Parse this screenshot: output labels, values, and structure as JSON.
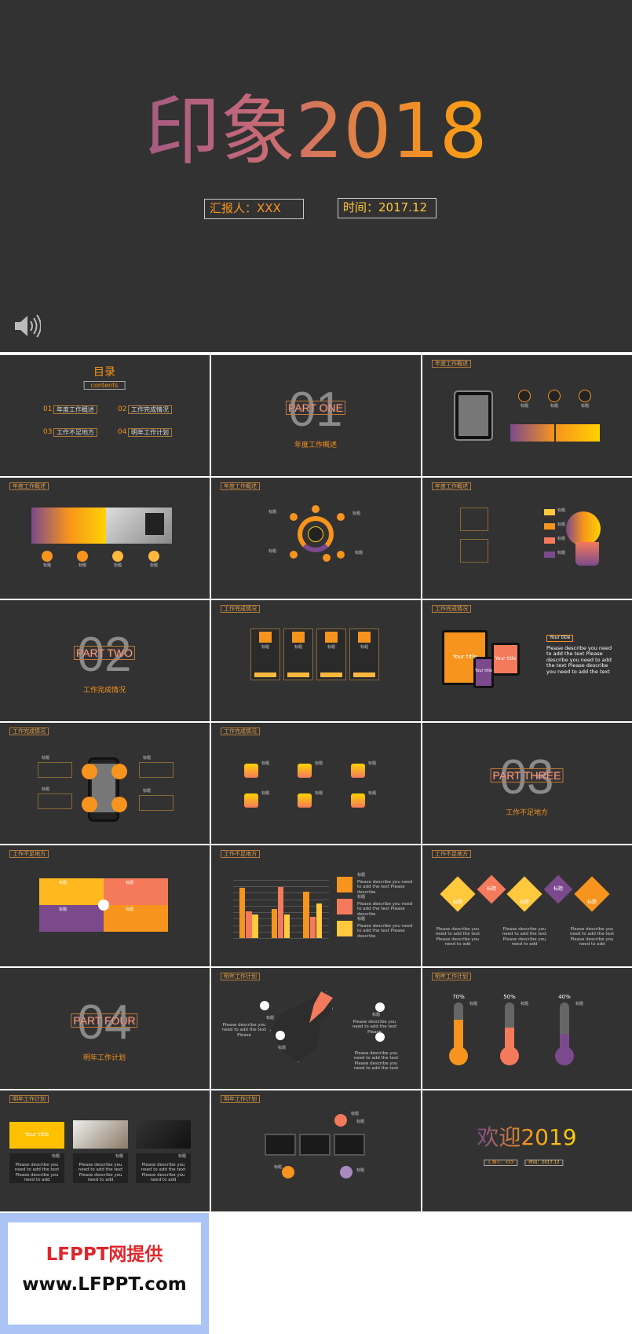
{
  "cover": {
    "title": "印象2018",
    "reporter": "汇报人：XXX",
    "time": "时间：2017.12"
  },
  "slides": [
    {
      "title": "目录",
      "subtitle": "contents",
      "items": [
        "01",
        "年度工作概述",
        "02",
        "工作完成情况",
        "03",
        "工作不足地方",
        "04",
        "明年工作计划"
      ]
    },
    {
      "number": "01",
      "part": "PART ONE",
      "caption": "年度工作概述"
    },
    {
      "header": "年度工作概述",
      "texts": [
        "标题",
        "标题",
        "标题"
      ]
    },
    {
      "header": "年度工作概述",
      "texts": [
        "标题",
        "标题",
        "标题",
        "标题"
      ]
    },
    {
      "header": "年度工作概述",
      "texts": [
        "标题",
        "标题",
        "标题",
        "标题"
      ]
    },
    {
      "header": "年度工作概述",
      "texts": [
        "标题",
        "标题",
        "标题",
        "标题"
      ]
    },
    {
      "number": "02",
      "part": "PART TWO",
      "caption": "工作完成情况"
    },
    {
      "header": "工作完成情况",
      "texts": [
        "标题",
        "标题",
        "标题",
        "标题"
      ]
    },
    {
      "header": "工作完成情况",
      "texts": [
        "Your title",
        "Your title",
        "Your title",
        "Your title",
        "Please describe you need to add the text Please describe you need to add the text Please describe you need to add the text"
      ]
    },
    {
      "header": "工作完成情况",
      "texts": [
        "标题",
        "标题",
        "标题",
        "标题"
      ]
    },
    {
      "header": "工作完成情况",
      "texts": [
        "标题",
        "标题",
        "标题",
        "标题",
        "标题",
        "标题"
      ]
    },
    {
      "number": "03",
      "part": "PART THREE",
      "caption": "工作不足地方"
    },
    {
      "header": "工作不足地方",
      "texts": [
        "标题",
        "标题",
        "标题",
        "标题"
      ]
    },
    {
      "header": "工作不足地方",
      "texts": [
        "标题",
        "标题",
        "标题",
        "Please describe you need to add the text Please describe",
        "Please describe you need to add the text Please describe",
        "Please describe you need to add the text Please describe"
      ],
      "chart": {
        "ylim": [
          0,
          5
        ],
        "series": [
          {
            "color": "#f7941d",
            "values": [
              4.3,
              2.5,
              4.0
            ]
          },
          {
            "color": "#f47a5b",
            "values": [
              2.3,
              4.4,
              1.8
            ]
          },
          {
            "color": "#ffc83d",
            "values": [
              2.0,
              2.0,
              3.0
            ]
          }
        ]
      }
    },
    {
      "header": "工作不足地方",
      "texts": [
        "标题",
        "标题",
        "标题",
        "标题",
        "标题",
        "Please describe you need to add the text Please describe you need to add",
        "Please describe you need to add the text Please describe you need to add",
        "Please describe you need to add the text Please describe you need to add"
      ]
    },
    {
      "number": "04",
      "part": "PART FOUR",
      "caption": "明年工作计划"
    },
    {
      "header": "明年工作计划",
      "texts": [
        "标题",
        "标题",
        "标题",
        "Please describe you need to add the text Please",
        "Please describe you need to add the text Please",
        "Please describe you need to add the text Please describe you need to add the text"
      ]
    },
    {
      "header": "明年工作计划",
      "texts": [
        "70%",
        "50%",
        "40%",
        "标题",
        "标题",
        "标题"
      ]
    },
    {
      "header": "明年工作计划",
      "texts": [
        "Your title",
        "标题",
        "标题",
        "标题",
        "Please describe you need to add the text Please describe you need to add",
        "Please describe you need to add the text Please describe you need to add",
        "Please describe you need to add the text Please describe you need to add"
      ]
    },
    {
      "header": "明年工作计划",
      "texts": [
        "标题",
        "标题",
        "标题",
        "标题"
      ]
    },
    {
      "title": "欢迎2019",
      "reporter": "汇报人：XXX",
      "time": "时间：2017.12"
    }
  ],
  "footer": {
    "line1": "LFPPT网提供",
    "line2": "www.LFPPT.com"
  }
}
